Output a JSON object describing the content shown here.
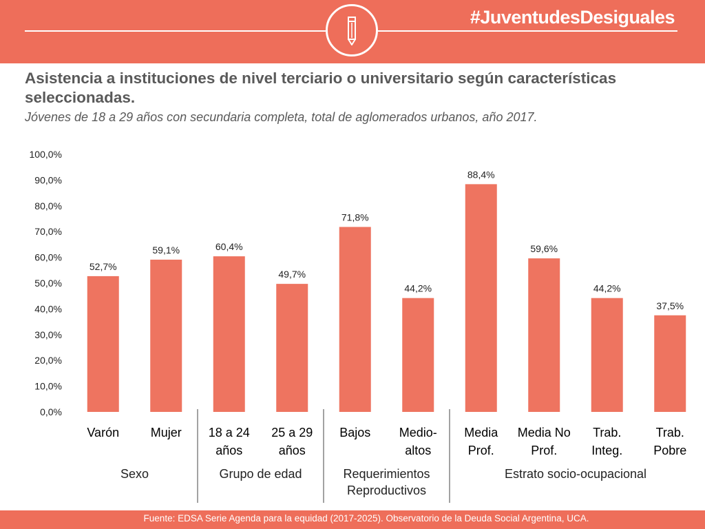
{
  "header": {
    "hashtag": "#JuventudesDesiguales",
    "logo_icon": "pencil-icon"
  },
  "title": "Asistencia a instituciones de nivel terciario o universitario según características seleccionadas.",
  "subtitle": "Jóvenes de 18 a 29 años con secundaria completa, total de aglomerados urbanos, año 2017.",
  "footer": {
    "source": "Fuente: EDSA Serie Agenda para la equidad (2017-2025). Observatorio de la Deuda Social Argentina, UCA."
  },
  "colors": {
    "accent": "#ee6e5a",
    "bar": "#ee7460"
  },
  "chart_data": {
    "type": "bar",
    "categories": [
      [
        "Varón"
      ],
      [
        "Mujer"
      ],
      [
        "18 a 24",
        "años"
      ],
      [
        "25 a 29",
        "años"
      ],
      [
        "Bajos"
      ],
      [
        "Medio-",
        "altos"
      ],
      [
        "Media",
        "Prof."
      ],
      [
        "Media No",
        "Prof."
      ],
      [
        "Trab.",
        "Integ."
      ],
      [
        "Trab.",
        "Pobre"
      ]
    ],
    "values": [
      52.7,
      59.1,
      60.4,
      49.7,
      71.8,
      44.2,
      88.4,
      59.6,
      44.2,
      37.5
    ],
    "value_labels": [
      "52,7%",
      "59,1%",
      "60,4%",
      "49,7%",
      "71,8%",
      "44,2%",
      "88,4%",
      "59,6%",
      "44,2%",
      "37,5%"
    ],
    "groups": [
      {
        "label": [
          "Sexo"
        ],
        "start": 0,
        "end": 1
      },
      {
        "label": [
          "Grupo de edad"
        ],
        "start": 2,
        "end": 3
      },
      {
        "label": [
          "Requerimientos",
          "Reproductivos"
        ],
        "start": 4,
        "end": 5
      },
      {
        "label": [
          "Estrato socio-ocupacional"
        ],
        "start": 6,
        "end": 9
      }
    ],
    "yticks": [
      "0,0%",
      "10,0%",
      "20,0%",
      "30,0%",
      "40,0%",
      "50,0%",
      "60,0%",
      "70,0%",
      "80,0%",
      "90,0%",
      "100,0%"
    ],
    "ylim": [
      0,
      100
    ],
    "grid": false,
    "legend": "none"
  }
}
